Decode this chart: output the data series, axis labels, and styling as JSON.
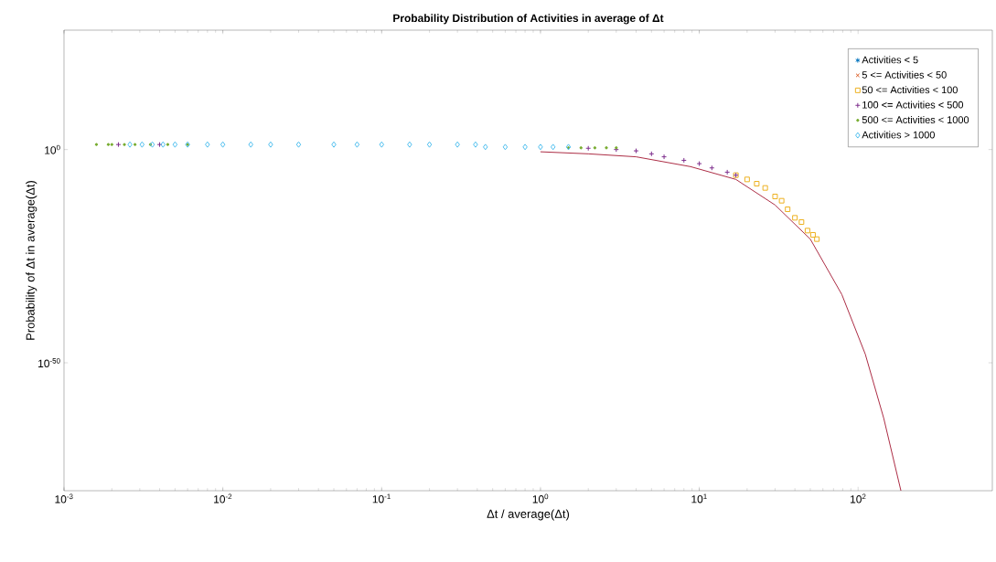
{
  "chart_data": {
    "type": "scatter",
    "title": "Probability Distribution of Activities in average of Δt",
    "xlabel": "Δt / average(Δt)",
    "ylabel": "Probability of Δt in average(Δt)",
    "log": "xy",
    "legend": "top right",
    "grid": false,
    "xlim": [
      0.001,
      700
    ],
    "ylim": [
      1e-80,
      1e+28
    ],
    "xticks": [
      {
        "value": 0.001,
        "label": "10$^{-3}$"
      },
      {
        "value": 0.01,
        "label": "10$^{-2}$"
      },
      {
        "value": 0.1,
        "label": "10$^{-1}$"
      },
      {
        "value": 1,
        "label": "10$^{0}$"
      },
      {
        "value": 10,
        "label": "10$^{1}$"
      },
      {
        "value": 100,
        "label": "10$^{2}$"
      }
    ],
    "yticks": [
      {
        "value": 1e-50,
        "label": "10$^{-50}$"
      },
      {
        "value": 1,
        "label": "10$^{0}$"
      }
    ],
    "series": [
      {
        "name": "Activities < 5",
        "color": "#0072bd",
        "marker": "star"
      },
      {
        "name": "5 <= Activities < 50",
        "color": "#d95319",
        "marker": "cross"
      },
      {
        "name": "50 <= Activities < 100",
        "color": "#edb120",
        "marker": "square",
        "x": [
          17,
          20,
          23,
          26,
          30,
          33,
          36,
          40,
          44,
          48,
          52,
          55
        ],
        "values": [
          1e-06,
          1e-07,
          1e-08,
          1e-09,
          1e-11,
          1e-12,
          1e-14,
          1e-16,
          1e-17,
          1e-19,
          1e-20,
          1e-21
        ]
      },
      {
        "name": "100 <= Activities < 500",
        "color": "#7e2f8e",
        "marker": "plus",
        "x": [
          0.0022,
          0.004,
          1,
          1.5,
          2,
          3,
          4,
          5,
          6,
          8,
          10,
          12,
          15,
          17
        ],
        "values": [
          15,
          15,
          null,
          null,
          2,
          1,
          0.5,
          0.1,
          0.02,
          0.003,
          0.0005,
          5e-05,
          5e-06,
          1e-06
        ]
      },
      {
        "name": "500 <= Activities < 1000",
        "color": "#77ac30",
        "marker": "circle",
        "x": [
          0.0016,
          0.0019,
          0.002,
          0.0024,
          0.0028,
          0.0035,
          0.0045,
          0.006,
          1.5,
          1.8,
          2.2,
          2.6,
          3.0
        ],
        "values": [
          15,
          15,
          15,
          15,
          15,
          15,
          15,
          15,
          2.5,
          2.5,
          2.5,
          2.5,
          2.5
        ]
      },
      {
        "name": "Activities > 1000",
        "color": "#4dbeee",
        "marker": "diamond",
        "x": [
          0.0026,
          0.0031,
          0.0036,
          0.0042,
          0.005,
          0.006,
          0.008,
          0.01,
          0.015,
          0.02,
          0.03,
          0.05,
          0.07,
          0.1,
          0.15,
          0.2,
          0.3,
          0.39,
          0.45,
          0.6,
          0.8,
          1.0,
          1.2,
          1.5
        ],
        "values": [
          15,
          15,
          15,
          15,
          15,
          15,
          15,
          15,
          15,
          15,
          15,
          15,
          15,
          15,
          15,
          15,
          15,
          15,
          4,
          4,
          4,
          4,
          4,
          4
        ]
      },
      {
        "type": "line",
        "color": "#a2142f",
        "marker": "none",
        "x": [
          1,
          2,
          4,
          8.8,
          17,
          30,
          50,
          79,
          111,
          145,
          186
        ],
        "values": [
          0.3,
          0.1,
          0.02,
          0.0001,
          1e-07,
          1e-13,
          1e-21,
          1e-34,
          1e-48,
          1e-63,
          1e-80
        ]
      }
    ]
  }
}
